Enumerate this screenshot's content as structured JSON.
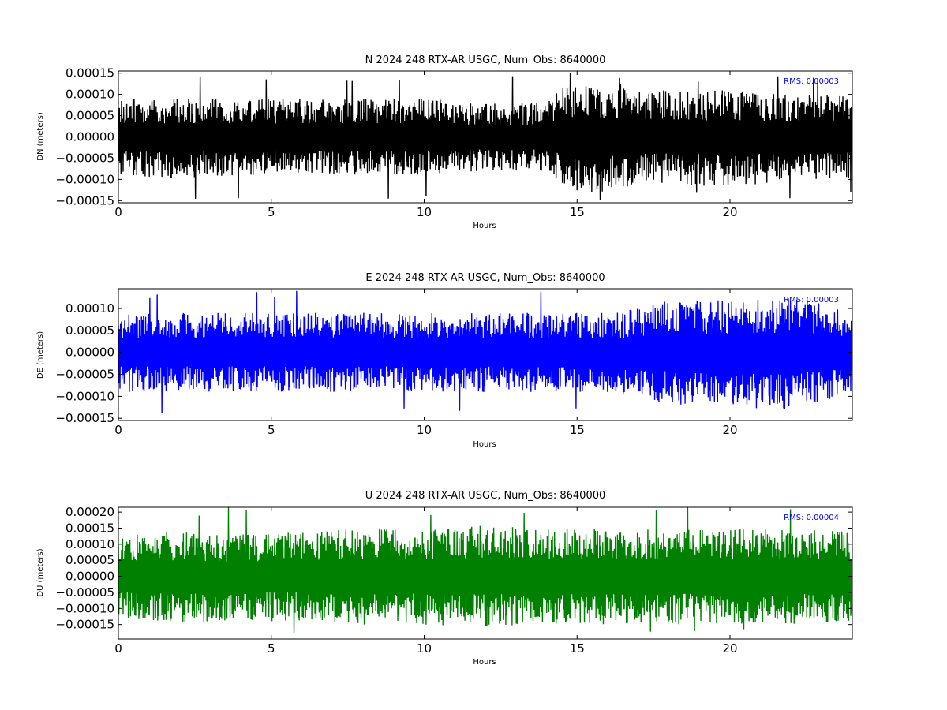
{
  "chart_data": [
    {
      "type": "line",
      "title": "N 2024 248 RTX-AR  USGC, Num_Obs: 8640000",
      "xlabel": "Hours",
      "ylabel": "DN (meters)",
      "annotation": "RMS:  0.00003",
      "color": "#000000",
      "annotation_color": "#0000ff",
      "xlim": [
        0,
        24
      ],
      "ylim": [
        -0.000155,
        0.000155
      ],
      "x_ticks": [
        0,
        5,
        10,
        15,
        20
      ],
      "x_tick_labels": [
        "0",
        "5",
        "10",
        "15",
        "20"
      ],
      "y_ticks": [
        0.00015,
        0.0001,
        5e-05,
        0.0,
        -5e-05,
        -0.0001,
        -0.00015
      ],
      "y_tick_labels": [
        "0.00015",
        "0.00010",
        "0.00005",
        "0.00000",
        "−0.00005",
        "−0.00010",
        "−0.00015"
      ],
      "series": [
        {
          "x": [
            0,
            2,
            4,
            6,
            8,
            10,
            12,
            14,
            14.5,
            15,
            16,
            17,
            18,
            20,
            22,
            24
          ],
          "y_upper": [
            9e-05,
            9e-05,
            9e-05,
            9e-05,
            9e-05,
            9e-05,
            8e-05,
            8e-05,
            0.00012,
            0.00012,
            0.00013,
            0.00012,
            0.00011,
            0.00011,
            0.0001,
            0.0001
          ],
          "y_lower": [
            -9e-05,
            -0.0001,
            -9e-05,
            -9e-05,
            -9e-05,
            -9e-05,
            -8e-05,
            -8e-05,
            -0.00011,
            -0.00013,
            -0.00013,
            -0.00011,
            -0.00011,
            -0.00012,
            -0.0001,
            -0.0001
          ],
          "y_max": 0.00015,
          "y_min": -0.00015
        }
      ]
    },
    {
      "type": "line",
      "title": "E 2024 248 RTX-AR  USGC, Num_Obs: 8640000",
      "xlabel": "Hours",
      "ylabel": "DE (meters)",
      "annotation": "RMS:  0.00003",
      "color": "#0000ff",
      "annotation_color": "#0000ff",
      "xlim": [
        0,
        24
      ],
      "ylim": [
        -0.000155,
        0.000145
      ],
      "x_ticks": [
        0,
        5,
        10,
        15,
        20
      ],
      "x_tick_labels": [
        "0",
        "5",
        "10",
        "15",
        "20"
      ],
      "y_ticks": [
        0.0001,
        5e-05,
        0.0,
        -5e-05,
        -0.0001,
        -0.00015
      ],
      "y_tick_labels": [
        "0.00010",
        "0.00005",
        "0.00000",
        "−0.00005",
        "−0.00010",
        "−0.00015"
      ],
      "series": [
        {
          "x": [
            0,
            2,
            4,
            6,
            8,
            10,
            12,
            14,
            16,
            17,
            18,
            20,
            21,
            22,
            23,
            24
          ],
          "y_upper": [
            9e-05,
            9e-05,
            9e-05,
            9e-05,
            9e-05,
            9e-05,
            9e-05,
            9e-05,
            9e-05,
            0.0001,
            0.00012,
            0.00012,
            0.00012,
            0.00013,
            0.00011,
            0.0001
          ],
          "y_lower": [
            -9e-05,
            -9e-05,
            -9e-05,
            -9e-05,
            -9e-05,
            -9e-05,
            -9e-05,
            -9e-05,
            -9e-05,
            -0.0001,
            -0.00012,
            -0.00012,
            -0.00013,
            -0.00013,
            -0.00011,
            -0.0001
          ],
          "y_max": 0.00014,
          "y_min": -0.00015
        }
      ]
    },
    {
      "type": "line",
      "title": "U 2024 248 RTX-AR  USGC, Num_Obs: 8640000",
      "xlabel": "Hours",
      "ylabel": "DU (meters)",
      "annotation": "RMS:  0.00004",
      "color": "#008000",
      "annotation_color": "#0000ff",
      "xlim": [
        0,
        24
      ],
      "ylim": [
        -0.000195,
        0.000215
      ],
      "x_ticks": [
        0,
        5,
        10,
        15,
        20
      ],
      "x_tick_labels": [
        "0",
        "5",
        "10",
        "15",
        "20"
      ],
      "y_ticks": [
        0.0002,
        0.00015,
        0.0001,
        5e-05,
        0.0,
        -5e-05,
        -0.0001,
        -0.00015
      ],
      "y_tick_labels": [
        "0.00020",
        "0.00015",
        "0.00010",
        "0.00005",
        "0.00000",
        "−0.00005",
        "−0.00010",
        "−0.00015"
      ],
      "series": [
        {
          "x": [
            0,
            2,
            4,
            6,
            8,
            10,
            12,
            14,
            16,
            18,
            20,
            22,
            24
          ],
          "y_upper": [
            0.00013,
            0.00014,
            0.00013,
            0.00014,
            0.00015,
            0.00015,
            0.00016,
            0.00015,
            0.00015,
            0.00015,
            0.00015,
            0.00015,
            0.00014
          ],
          "y_lower": [
            -0.00013,
            -0.00015,
            -0.00014,
            -0.00014,
            -0.00015,
            -0.00015,
            -0.00016,
            -0.00015,
            -0.00015,
            -0.00015,
            -0.00015,
            -0.00015,
            -0.00014
          ],
          "y_max": 0.00022,
          "y_min": -0.00019
        }
      ]
    }
  ]
}
